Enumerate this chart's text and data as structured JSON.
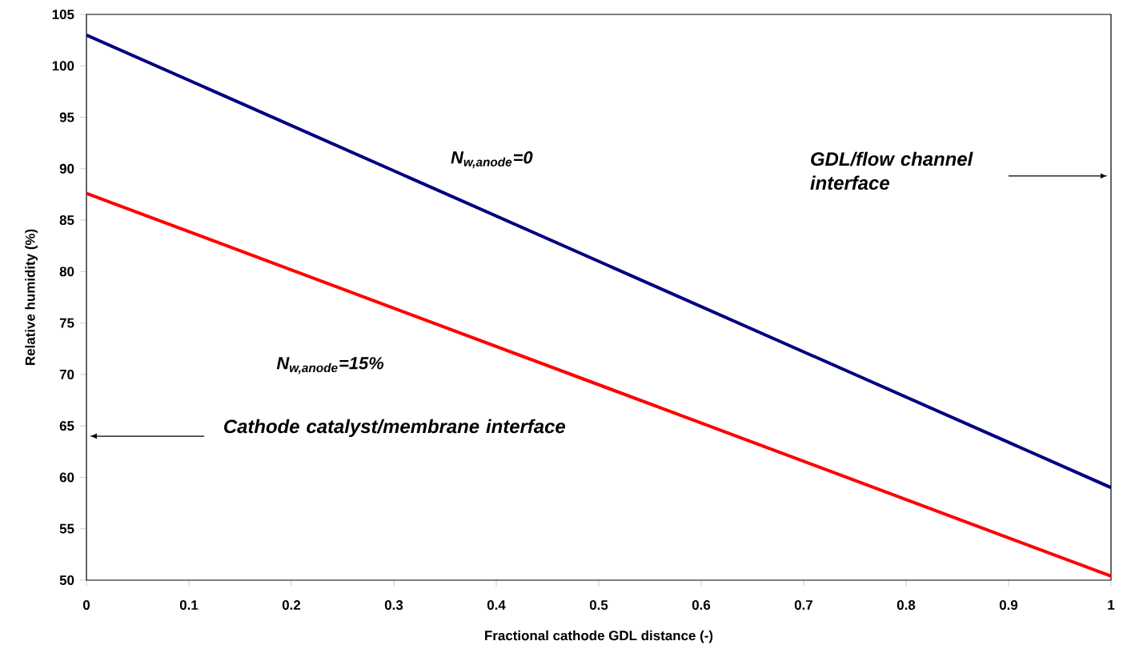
{
  "chart_data": {
    "type": "line",
    "xlabel": "Fractional cathode GDL distance (-)",
    "ylabel": "Relative humidity (%)",
    "x": [
      0,
      1
    ],
    "series": [
      {
        "name": "N$_{w,anode}$=0",
        "color": "#000080",
        "values": [
          103,
          59
        ]
      },
      {
        "name": "N$_{w,anode}$=15%",
        "color": "#ff0000",
        "values": [
          87.6,
          50.4
        ]
      }
    ],
    "xlim": [
      0,
      1
    ],
    "xticks": [
      0,
      0.1,
      0.2,
      0.3,
      0.4,
      0.5,
      0.6,
      0.7,
      0.8,
      0.9,
      1
    ],
    "ylim": [
      50,
      105
    ],
    "yticks": [
      50,
      55,
      60,
      65,
      70,
      75,
      80,
      85,
      90,
      95,
      100,
      105
    ],
    "grid": false,
    "legend": false,
    "marker": "none",
    "line_style": "solid",
    "annotations": [
      "Cathode catalyst/membrane interface",
      "GDL/flow channel interface"
    ]
  }
}
